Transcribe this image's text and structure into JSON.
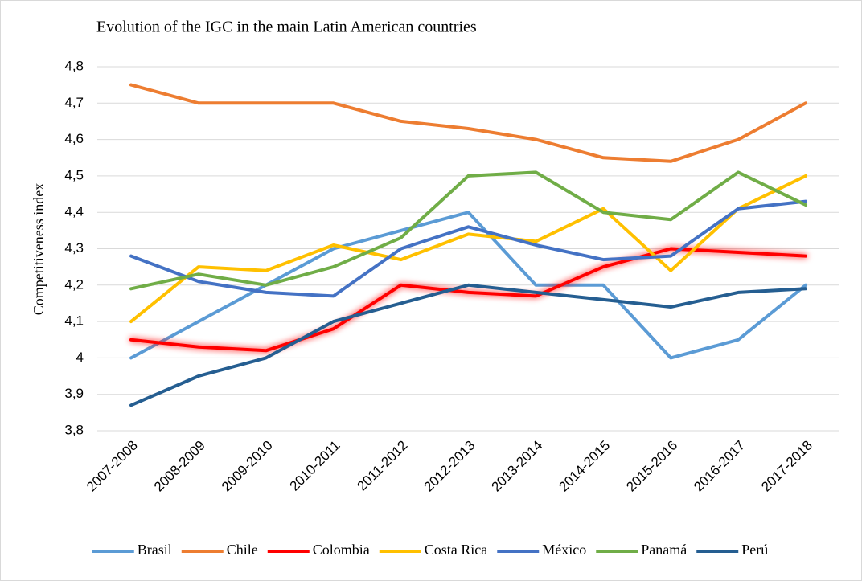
{
  "chart_data": {
    "type": "line",
    "title": "Evolution of the IGC in the main Latin American countries",
    "ylabel": "Competitiveness index",
    "categories": [
      "2007-2008",
      "2008-2009",
      "2009-2010",
      "2010-2011",
      "2011-2012",
      "2012-2013",
      "2013-2014",
      "2014-2015",
      "2015-2016",
      "2016-2017",
      "2017-2018"
    ],
    "series": [
      {
        "name": "Brasil",
        "color": "#5b9bd5",
        "values": [
          4.0,
          4.1,
          4.2,
          4.3,
          4.35,
          4.4,
          4.2,
          4.2,
          4.0,
          4.05,
          4.2
        ]
      },
      {
        "name": "Chile",
        "color": "#ed7d31",
        "values": [
          4.75,
          4.7,
          4.7,
          4.7,
          4.65,
          4.63,
          4.6,
          4.55,
          4.54,
          4.6,
          4.7
        ]
      },
      {
        "name": "Colombia",
        "color": "#ff0000",
        "glow": true,
        "values": [
          4.05,
          4.03,
          4.02,
          4.08,
          4.2,
          4.18,
          4.17,
          4.25,
          4.3,
          4.29,
          4.28
        ]
      },
      {
        "name": "Costa Rica",
        "color": "#ffc000",
        "values": [
          4.1,
          4.25,
          4.24,
          4.31,
          4.27,
          4.34,
          4.32,
          4.41,
          4.24,
          4.41,
          4.5
        ]
      },
      {
        "name": "México",
        "color": "#4472c4",
        "values": [
          4.28,
          4.21,
          4.18,
          4.17,
          4.3,
          4.36,
          4.31,
          4.27,
          4.28,
          4.41,
          4.43
        ]
      },
      {
        "name": "Panamá",
        "color": "#70ad47",
        "values": [
          4.19,
          4.23,
          4.2,
          4.25,
          4.33,
          4.5,
          4.51,
          4.4,
          4.38,
          4.51,
          4.42
        ]
      },
      {
        "name": "Perú",
        "color": "#255e91",
        "values": [
          3.87,
          3.95,
          4.0,
          4.1,
          4.15,
          4.2,
          4.18,
          4.16,
          4.14,
          4.18,
          4.19
        ]
      }
    ],
    "ylim": [
      3.8,
      4.8
    ],
    "yticks": [
      {
        "value": 3.8,
        "label": "3,8"
      },
      {
        "value": 3.9,
        "label": "3,9"
      },
      4,
      {
        "value": 4.1,
        "label": "4,1"
      },
      {
        "value": 4.2,
        "label": "4,2"
      },
      {
        "value": 4.3,
        "label": "4,3"
      },
      {
        "value": 4.4,
        "label": "4,4"
      },
      {
        "value": 4.5,
        "label": "4,5"
      },
      {
        "value": 4.6,
        "label": "4,6"
      },
      {
        "value": 4.7,
        "label": "4,7"
      },
      {
        "value": 4.8,
        "label": "4,8"
      }
    ],
    "grid": true,
    "legend": "bottom"
  }
}
